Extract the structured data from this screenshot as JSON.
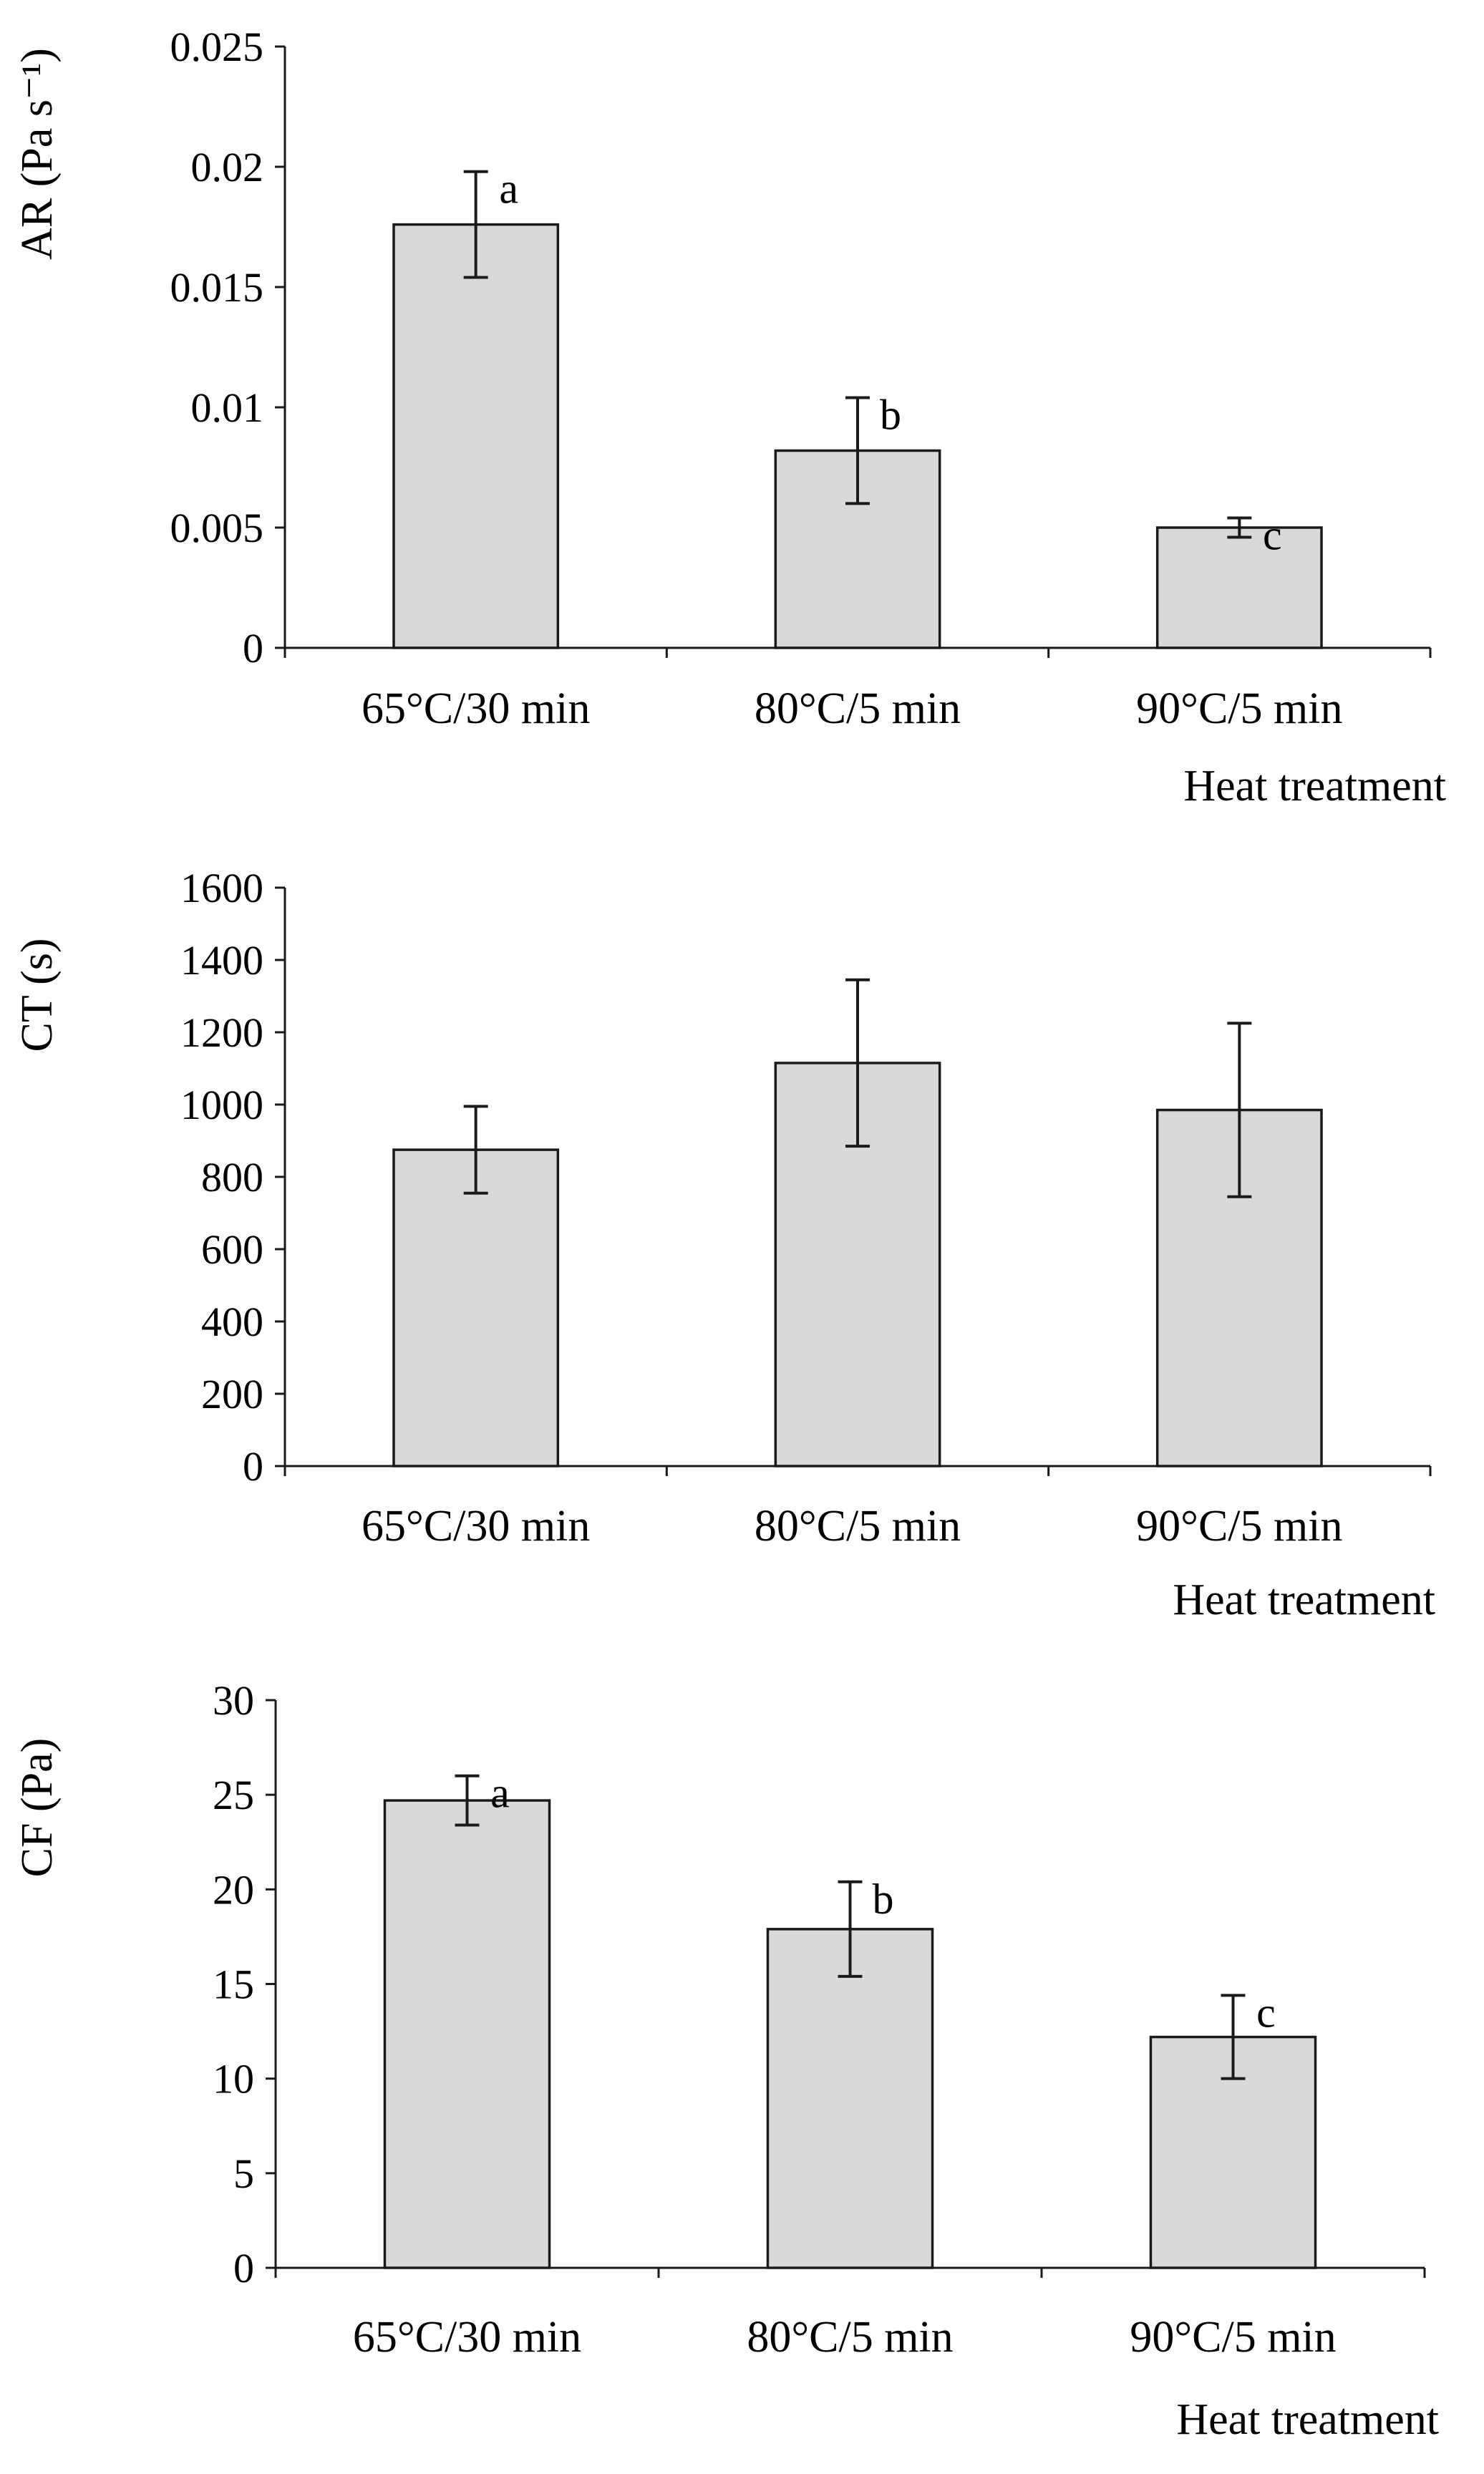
{
  "chart_data": [
    {
      "type": "bar",
      "categories": [
        "65°C/30 min",
        "80°C/5 min",
        "90°C/5 min"
      ],
      "values": [
        0.0176,
        0.0082,
        0.005
      ],
      "errors": [
        0.0022,
        0.0022,
        0.0004
      ],
      "labels": [
        "a",
        "b",
        "c"
      ],
      "ylim": [
        0,
        0.025
      ],
      "yticks": [
        "0",
        "0.005",
        "0.01",
        "0.015",
        "0.02",
        "0.025"
      ],
      "ylabel": "AR (Pa s⁻¹)",
      "xlabel": "Heat treatment",
      "grid": false,
      "bar_color": "#d9d9d9"
    },
    {
      "type": "bar",
      "categories": [
        "65°C/30 min",
        "80°C/5 min",
        "90°C/5 min"
      ],
      "values": [
        875,
        1115,
        985
      ],
      "errors": [
        120,
        230,
        240
      ],
      "labels": [
        "",
        "",
        ""
      ],
      "ylim": [
        0,
        1600
      ],
      "yticks": [
        "0",
        "200",
        "400",
        "600",
        "800",
        "1000",
        "1200",
        "1400",
        "1600"
      ],
      "ylabel": "CT (s)",
      "xlabel": "Heat treatment",
      "grid": false,
      "bar_color": "#d9d9d9"
    },
    {
      "type": "bar",
      "categories": [
        "65°C/30 min",
        "80°C/5 min",
        "90°C/5 min"
      ],
      "values": [
        24.7,
        17.9,
        12.2
      ],
      "errors": [
        1.3,
        2.5,
        2.2
      ],
      "labels": [
        "a",
        "b",
        "c"
      ],
      "ylim": [
        0,
        30
      ],
      "yticks": [
        "0",
        "5",
        "10",
        "15",
        "20",
        "25",
        "30"
      ],
      "ylabel": "CF (Pa)",
      "xlabel": "Heat treatment",
      "grid": false,
      "bar_color": "#d9d9d9"
    }
  ]
}
